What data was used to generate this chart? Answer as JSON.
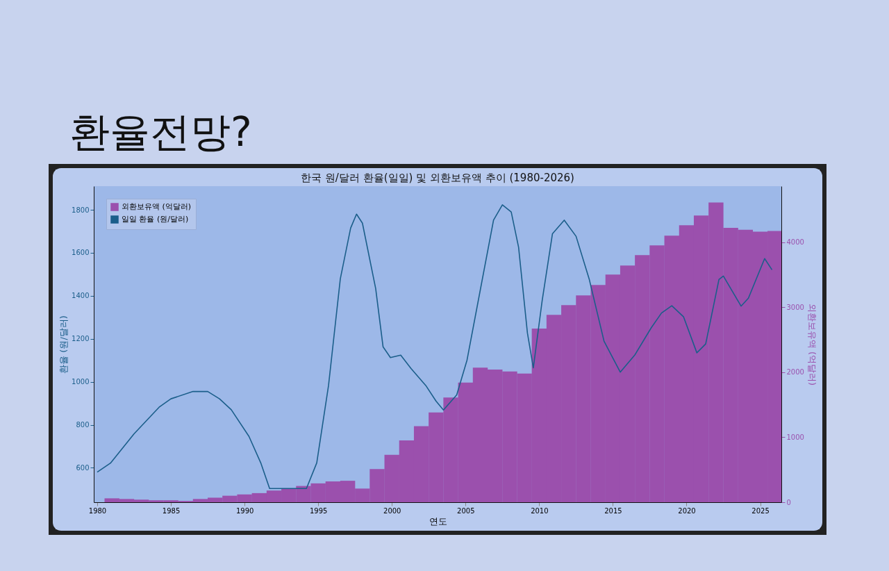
{
  "chart_data": {
    "type": "line",
    "title": "환율전망?",
    "subtitle": "한국 원/달러 환율(일일) 및 외환보유액 추이 (1980-2026)",
    "xlabel": "연도",
    "ylabel": "환율 (원/달러)",
    "y2label": "외환보유액 (억달러)",
    "xlim": [
      1980,
      2026.2
    ],
    "xticks": [
      1980,
      1985,
      1990,
      1995,
      2000,
      2005,
      2010,
      2015,
      2020,
      2025
    ],
    "ylim": [
      440,
      1910
    ],
    "yticks": [
      600,
      800,
      1000,
      1200,
      1400,
      1600,
      1800
    ],
    "y2lim": [
      0,
      4860
    ],
    "y2ticks": [
      0,
      1000,
      2000,
      3000,
      4000
    ],
    "legend": "top left",
    "grid": false,
    "series": [
      {
        "name": "외환보유액 (억달러)",
        "type": "bar",
        "axis": "y2",
        "color": "#9b50ad",
        "x": [
          1981,
          1982,
          1983,
          1984,
          1985,
          1986,
          1987,
          1988,
          1989,
          1990,
          1991,
          1992,
          1993,
          1994,
          1995,
          1996,
          1997,
          1998,
          1999,
          2000,
          2001,
          2002,
          2003,
          2004,
          2005,
          2006,
          2007,
          2008,
          2009,
          2010,
          2011,
          2012,
          2013,
          2014,
          2015,
          2016,
          2017,
          2018,
          2019,
          2020,
          2021,
          2022,
          2023,
          2024,
          2025,
          2026
        ],
        "values": [
          60,
          50,
          40,
          30,
          30,
          20,
          50,
          70,
          100,
          120,
          140,
          180,
          210,
          250,
          290,
          320,
          330,
          210,
          510,
          730,
          950,
          1170,
          1380,
          1610,
          1840,
          2070,
          2040,
          2010,
          1980,
          2670,
          2880,
          3030,
          3180,
          3340,
          3500,
          3640,
          3800,
          3950,
          4100,
          4260,
          4410,
          4610,
          4220,
          4190,
          4160,
          4170
        ]
      },
      {
        "name": "일일 환율 (원/달러)",
        "axis": "y",
        "color": "#1b5e8a",
        "x": [
          1980.0,
          1980.9,
          1982.5,
          1984.2,
          1985.0,
          1986.5,
          1987.5,
          1988.3,
          1989.1,
          1990.3,
          1991.1,
          1991.7,
          1994.2,
          1994.9,
          1995.7,
          1996.5,
          1997.2,
          1997.6,
          1998.0,
          1998.9,
          1999.4,
          1999.9,
          2000.6,
          2001.3,
          2002.3,
          2003.0,
          2003.5,
          2004.4,
          2005.1,
          2006.0,
          2006.9,
          2007.5,
          2008.1,
          2008.6,
          2009.2,
          2009.6,
          2010.2,
          2010.9,
          2011.7,
          2012.5,
          2013.4,
          2014.4,
          2015.5,
          2016.5,
          2017.6,
          2018.3,
          2019.0,
          2019.8,
          2020.7,
          2021.3,
          2022.2,
          2022.5,
          2023.7,
          2024.2,
          2025.3,
          2025.8
        ],
        "values": [
          580,
          622,
          758,
          882,
          921,
          955,
          955,
          921,
          870,
          746,
          623,
          504,
          504,
          623,
          983,
          1479,
          1715,
          1780,
          1738,
          1434,
          1163,
          1113,
          1124,
          1062,
          983,
          910,
          869,
          939,
          1101,
          1427,
          1752,
          1823,
          1790,
          1626,
          1227,
          1065,
          1377,
          1689,
          1752,
          1677,
          1476,
          1189,
          1045,
          1126,
          1251,
          1320,
          1354,
          1302,
          1135,
          1176,
          1476,
          1492,
          1352,
          1389,
          1573,
          1521
        ]
      }
    ]
  }
}
